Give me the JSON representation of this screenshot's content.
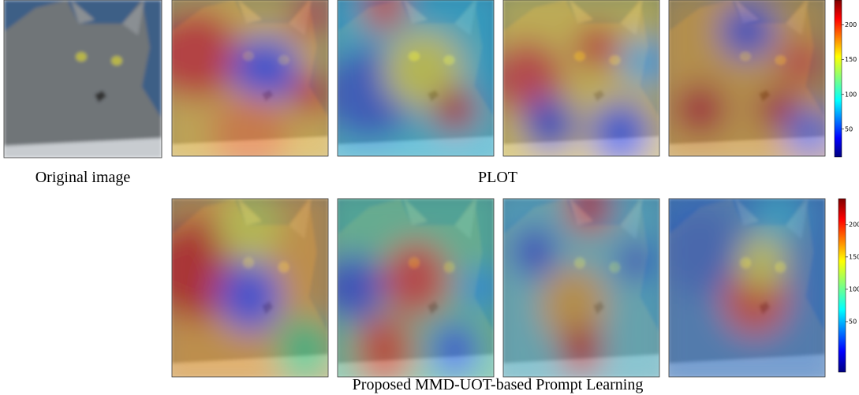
{
  "labels": {
    "original": "Original image",
    "plot": "PLOT",
    "proposed": "Proposed MMD-UOT-based Prompt Learning"
  },
  "colorbars": [
    {
      "lim": [
        10,
        236
      ],
      "ticks": [
        50,
        100,
        150,
        200
      ]
    },
    {
      "lim": [
        -28,
        240
      ],
      "ticks": [
        50,
        100,
        150,
        200
      ]
    }
  ]
}
